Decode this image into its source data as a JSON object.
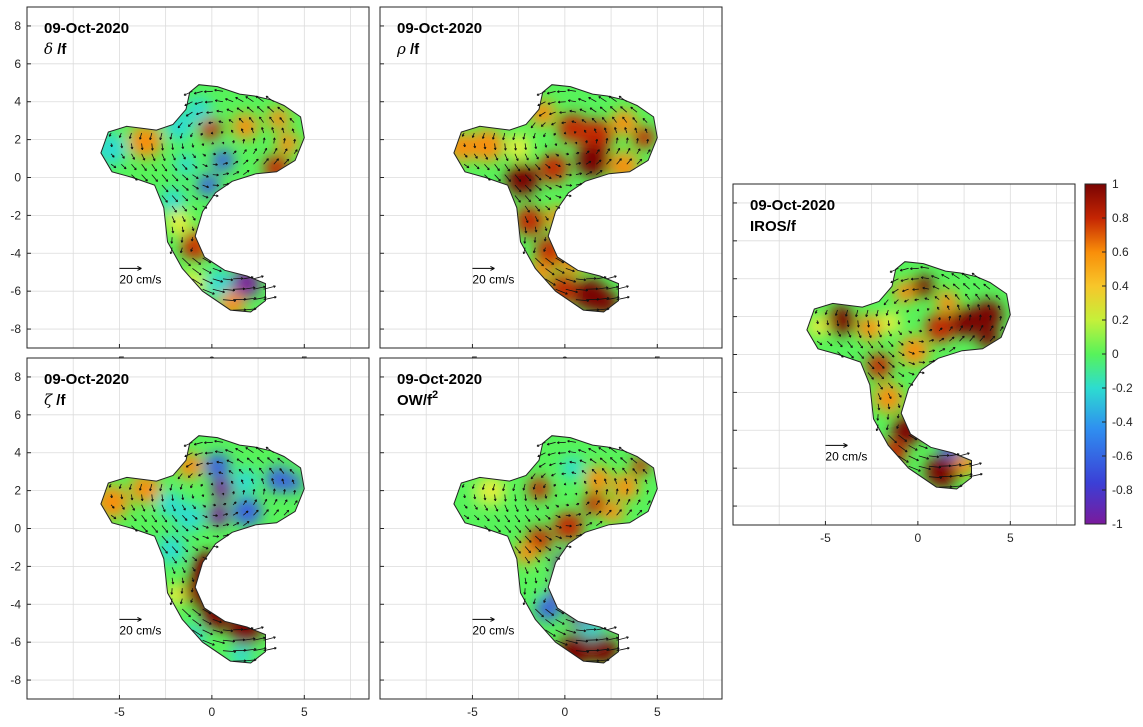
{
  "chart_data": [
    {
      "type": "heatmap",
      "date": "09-Oct-2020",
      "variable": "δ /f",
      "xlim": [
        -10,
        8.5
      ],
      "ylim": [
        -9,
        9
      ],
      "xticks": [
        "-5",
        "0",
        "5"
      ],
      "yticks": [
        "8",
        "6",
        "4",
        "2",
        "0",
        "-2",
        "-4",
        "-6",
        "-8"
      ],
      "grid": true,
      "scale_arrow": "20 cm/s"
    },
    {
      "type": "heatmap",
      "date": "09-Oct-2020",
      "variable": "ρ /f",
      "xlim": [
        -10,
        8.5
      ],
      "ylim": [
        -9,
        9
      ],
      "xticks": [
        "-5",
        "0",
        "5"
      ],
      "yticks": [],
      "grid": true,
      "scale_arrow": "20 cm/s"
    },
    {
      "type": "heatmap",
      "date": "09-Oct-2020",
      "variable": "ζ /f",
      "xlim": [
        -10,
        8.5
      ],
      "ylim": [
        -9,
        9
      ],
      "xticks": [
        "-5",
        "0",
        "5"
      ],
      "yticks": [
        "8",
        "6",
        "4",
        "2",
        "0",
        "-2",
        "-4",
        "-6",
        "-8"
      ],
      "grid": true,
      "scale_arrow": "20 cm/s"
    },
    {
      "type": "heatmap",
      "date": "09-Oct-2020",
      "variable": "OW/f",
      "variable_sup": "2",
      "xlim": [
        -10,
        8.5
      ],
      "ylim": [
        -9,
        9
      ],
      "xticks": [
        "-5",
        "0",
        "5"
      ],
      "yticks": [],
      "grid": true,
      "scale_arrow": "20 cm/s"
    },
    {
      "type": "heatmap",
      "date": "09-Oct-2020",
      "variable": "IROS/f",
      "xlim": [
        -10,
        8.5
      ],
      "ylim": [
        -9,
        9
      ],
      "xticks": [
        "-5",
        "0",
        "5"
      ],
      "yticks": [],
      "grid": true,
      "scale_arrow": "20 cm/s"
    }
  ],
  "colorbar": {
    "range": [
      -1,
      1
    ],
    "ticks": [
      "1",
      "0.8",
      "0.6",
      "0.4",
      "0.2",
      "0",
      "-0.2",
      "-0.4",
      "-0.6",
      "-0.8",
      "-1"
    ],
    "colormap": "jet-like"
  },
  "colors": {
    "dark_red": "#7a0403",
    "red": "#c42503",
    "orange": "#f98e09",
    "yellow": "#e2f03c",
    "green": "#57f35a",
    "cyan": "#2ddcd0",
    "blue": "#3a62e0",
    "purple": "#7a1a9c"
  }
}
